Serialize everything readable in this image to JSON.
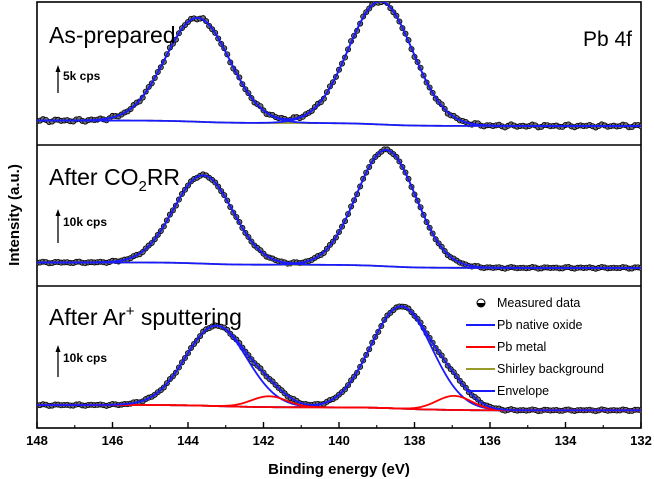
{
  "chart_data": {
    "type": "line",
    "xlabel": "Binding energy (eV)",
    "ylabel": "Intensity (a.u.)",
    "xlim": [
      148,
      132
    ],
    "x_reversed": true,
    "x_ticks": [
      "148",
      "146",
      "144",
      "142",
      "140",
      "138",
      "136",
      "134",
      "132"
    ],
    "corner_label": "Pb 4f",
    "legend": {
      "placement": "top-right of bottom panel",
      "entries": [
        {
          "name": "Measured data",
          "color": "#000000",
          "marker": "half-filled-circle"
        },
        {
          "name": "Pb native oxide",
          "color": "#1a1aff"
        },
        {
          "name": "Pb metal",
          "color": "#ff0000"
        },
        {
          "name": "Shirley background",
          "color": "#9a9a28"
        },
        {
          "name": "Envelope",
          "color": "#1a1aff"
        }
      ]
    },
    "panels": [
      {
        "title_main": "As-prepared",
        "title_sub": "",
        "title_rest": "",
        "title_sup": "",
        "scale_bar": "5k cps",
        "scale_units": 5,
        "ylim": [
          0,
          33
        ],
        "background": {
          "left": 2.2,
          "right": 0.8
        },
        "components": [
          {
            "name": "Pb native oxide",
            "color": "#1a1aff",
            "peaks": [
              {
                "center": 143.75,
                "height": 27.0,
                "fwhm": 2.0
              },
              {
                "center": 138.9,
                "height": 32.0,
                "fwhm": 2.0
              }
            ]
          }
        ],
        "peak_labels": []
      },
      {
        "title_main": "After CO",
        "title_sub": "2",
        "title_rest": "RR",
        "title_sup": "",
        "scale_bar": "10k cps",
        "scale_units": 10,
        "ylim": [
          0,
          58
        ],
        "background": {
          "left": 3.5,
          "right": 1.0
        },
        "components": [
          {
            "name": "Pb native oxide",
            "color": "#1a1aff",
            "peaks": [
              {
                "center": 143.6,
                "height": 41.0,
                "fwhm": 1.85
              },
              {
                "center": 138.75,
                "height": 54.0,
                "fwhm": 1.85
              }
            ]
          }
        ],
        "peak_labels": []
      },
      {
        "title_main": "After Ar",
        "title_sub": "",
        "title_rest": " sputtering",
        "title_sup": "+",
        "scale_bar": "10k cps",
        "scale_units": 10,
        "ylim": [
          0,
          58
        ],
        "background": {
          "left": 3.2,
          "right": 0.8
        },
        "components": [
          {
            "name": "Pb native oxide",
            "color": "#1a1aff",
            "peaks": [
              {
                "center": 143.25,
                "height": 37.0,
                "fwhm": 1.9
              },
              {
                "center": 138.35,
                "height": 47.0,
                "fwhm": 1.9
              }
            ]
          },
          {
            "name": "Pb metal",
            "color": "#ff0000",
            "peaks": [
              {
                "center": 141.85,
                "height": 5.0,
                "fwhm": 1.1
              },
              {
                "center": 136.95,
                "height": 6.5,
                "fwhm": 1.1
              }
            ]
          }
        ],
        "peak_labels": []
      }
    ]
  }
}
